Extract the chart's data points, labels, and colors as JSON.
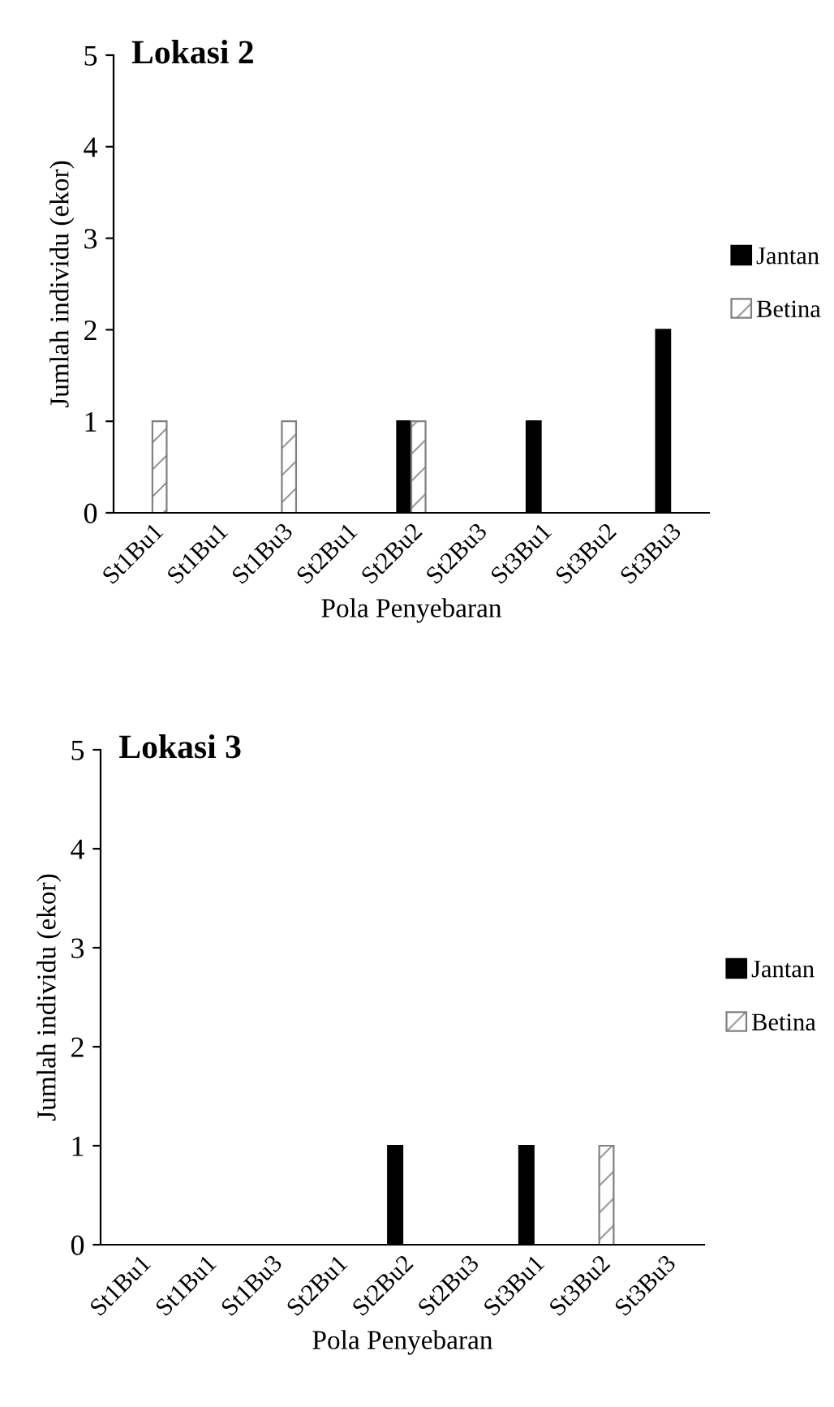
{
  "chart_data": [
    {
      "type": "bar",
      "title": "Lokasi 2",
      "xlabel": "Pola Penyebaran",
      "ylabel": "Jumlah individu (ekor)",
      "categories": [
        "St1Bu1",
        "St1Bu1",
        "St1Bu3",
        "St2Bu1",
        "St2Bu2",
        "St2Bu3",
        "St3Bu1",
        "St3Bu2",
        "St3Bu3"
      ],
      "series": [
        {
          "name": "Jantan",
          "color": "#000000",
          "values": [
            0,
            0,
            0,
            0,
            1,
            0,
            1,
            0,
            2
          ]
        },
        {
          "name": "Betina",
          "color": "#808080",
          "values": [
            1,
            0,
            1,
            0,
            1,
            0,
            0,
            0,
            0
          ]
        }
      ],
      "ylim": [
        0,
        5
      ],
      "yticks": [
        0,
        1,
        2,
        3,
        4,
        5
      ],
      "grid": false,
      "legend": "right"
    },
    {
      "type": "bar",
      "title": "Lokasi 3",
      "xlabel": "Pola Penyebaran",
      "ylabel": "Jumlah individu (ekor)",
      "categories": [
        "St1Bu1",
        "St1Bu1",
        "St1Bu3",
        "St2Bu1",
        "St2Bu2",
        "St2Bu3",
        "St3Bu1",
        "St3Bu2",
        "St3Bu3"
      ],
      "series": [
        {
          "name": "Jantan",
          "color": "#000000",
          "values": [
            0,
            0,
            0,
            0,
            1,
            0,
            1,
            0,
            0
          ]
        },
        {
          "name": "Betina",
          "color": "#808080",
          "values": [
            0,
            0,
            0,
            0,
            0,
            0,
            0,
            1,
            0
          ]
        }
      ],
      "ylim": [
        0,
        5
      ],
      "yticks": [
        0,
        1,
        2,
        3,
        4,
        5
      ],
      "grid": false,
      "legend": "right"
    }
  ]
}
